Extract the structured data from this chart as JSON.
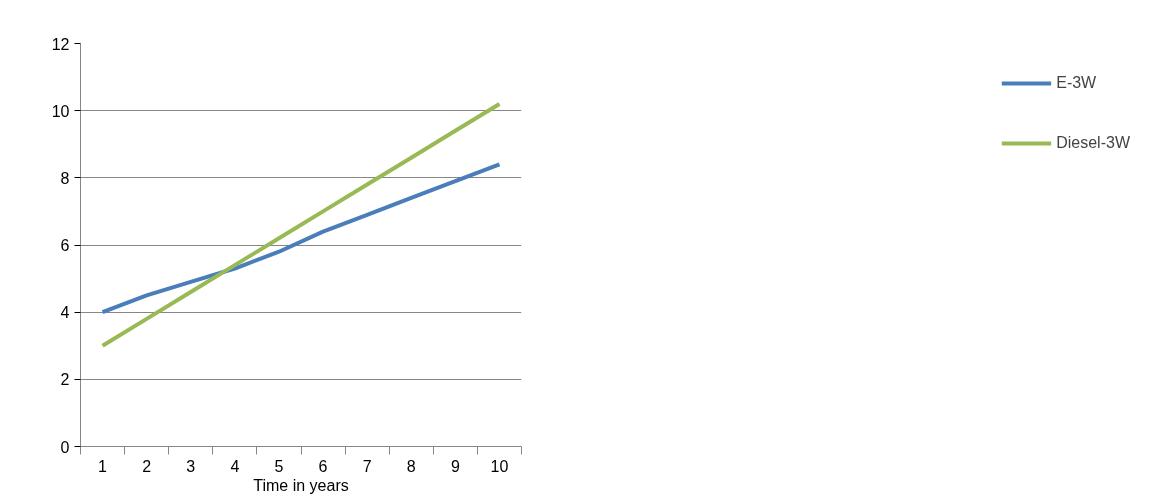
{
  "chart_data": {
    "type": "line",
    "xlabel": "Time in years",
    "categories": [
      "1",
      "2",
      "3",
      "4",
      "5",
      "6",
      "7",
      "8",
      "9",
      "10"
    ],
    "series": [
      {
        "name": "E-3W",
        "color": "#4a7ebb",
        "values": [
          4.0,
          4.5,
          4.9,
          5.3,
          5.8,
          6.4,
          6.9,
          7.4,
          7.9,
          8.4
        ]
      },
      {
        "name": "Diesel-3W",
        "color": "#98b954",
        "values": [
          3.0,
          3.8,
          4.6,
          5.4,
          6.2,
          7.0,
          7.8,
          8.6,
          9.4,
          10.2
        ]
      }
    ],
    "ylim": [
      0,
      12
    ],
    "yticks": [
      0,
      2,
      4,
      6,
      8,
      10,
      12
    ],
    "grid": "y",
    "legend": "right",
    "marker": "none",
    "line_style": "solid"
  }
}
